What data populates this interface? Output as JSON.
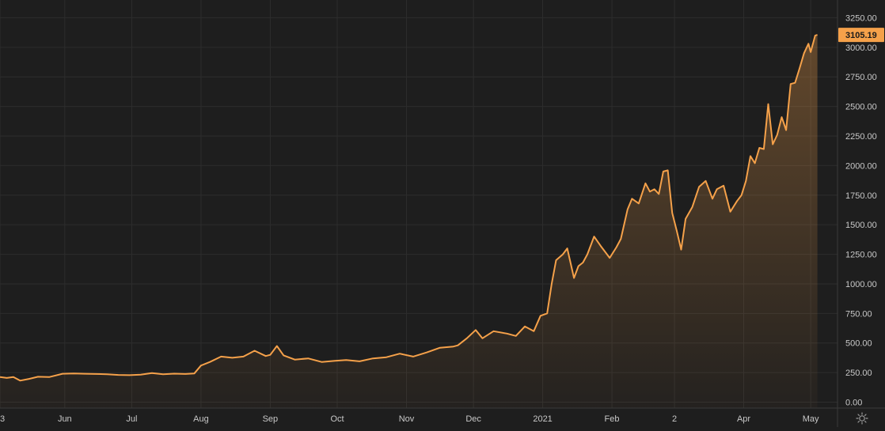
{
  "colors": {
    "background": "#1e1e1e",
    "grid": "#2d2d2d",
    "axis_text": "#c8c8c8",
    "line": "#f5a14a",
    "fill_top": "#f5a14a",
    "price_badge_bg": "#f5a14a",
    "price_badge_text": "#1a1a1a",
    "axis_border": "#3a3a3a"
  },
  "price_badge": {
    "label": "3105.19",
    "value": 3105.19
  },
  "icons": {
    "settings": "sun-gear-icon"
  },
  "chart_data": {
    "type": "area",
    "title": "",
    "xlabel": "",
    "ylabel": "",
    "ylim": [
      -50,
      3400
    ],
    "y_ticks": [
      0,
      250,
      500,
      750,
      1000,
      1250,
      1500,
      1750,
      2000,
      2250,
      2500,
      2750,
      3000,
      3250
    ],
    "y_tick_labels": [
      "0.00",
      "250.00",
      "500.00",
      "750.00",
      "1000.00",
      "1250.00",
      "1500.00",
      "1750.00",
      "2000.00",
      "2250.00",
      "2500.00",
      "2750.00",
      "3000.00",
      "3250.00"
    ],
    "x_range": [
      "2020-05-03",
      "2021-05-13"
    ],
    "x_ticks": [
      "2020-05-03",
      "2020-06-01",
      "2020-07-01",
      "2020-08-01",
      "2020-09-01",
      "2020-10-01",
      "2020-11-01",
      "2020-12-01",
      "2021-01-01",
      "2021-02-01",
      "2021-03-01",
      "2021-04-01",
      "2021-05-01"
    ],
    "x_tick_labels": [
      "3",
      "Jun",
      "Jul",
      "Aug",
      "Sep",
      "Oct",
      "Nov",
      "Dec",
      "2021",
      "Feb",
      "2",
      "Apr",
      "May"
    ],
    "grid": true,
    "series": [
      {
        "x": [
          "2020-05-01",
          "2020-05-06",
          "2020-05-09",
          "2020-05-12",
          "2020-05-16",
          "2020-05-20",
          "2020-05-25",
          "2020-05-31",
          "2020-06-05",
          "2020-06-10",
          "2020-06-15",
          "2020-06-20",
          "2020-06-25",
          "2020-06-30",
          "2020-07-05",
          "2020-07-10",
          "2020-07-15",
          "2020-07-20",
          "2020-07-25",
          "2020-07-29",
          "2020-08-01",
          "2020-08-05",
          "2020-08-10",
          "2020-08-15",
          "2020-08-20",
          "2020-08-25",
          "2020-08-30",
          "2020-09-01",
          "2020-09-04",
          "2020-09-07",
          "2020-09-12",
          "2020-09-18",
          "2020-09-24",
          "2020-09-30",
          "2020-10-05",
          "2020-10-11",
          "2020-10-17",
          "2020-10-23",
          "2020-10-29",
          "2020-11-04",
          "2020-11-10",
          "2020-11-16",
          "2020-11-22",
          "2020-11-24",
          "2020-11-28",
          "2020-12-02",
          "2020-12-05",
          "2020-12-10",
          "2020-12-16",
          "2020-12-20",
          "2020-12-24",
          "2020-12-28",
          "2020-12-31",
          "2021-01-03",
          "2021-01-05",
          "2021-01-07",
          "2021-01-10",
          "2021-01-12",
          "2021-01-15",
          "2021-01-17",
          "2021-01-19",
          "2021-01-21",
          "2021-01-24",
          "2021-01-27",
          "2021-01-31",
          "2021-02-03",
          "2021-02-05",
          "2021-02-08",
          "2021-02-10",
          "2021-02-13",
          "2021-02-16",
          "2021-02-18",
          "2021-02-20",
          "2021-02-22",
          "2021-02-24",
          "2021-02-26",
          "2021-02-28",
          "2021-03-02",
          "2021-03-04",
          "2021-03-06",
          "2021-03-09",
          "2021-03-12",
          "2021-03-15",
          "2021-03-18",
          "2021-03-20",
          "2021-03-23",
          "2021-03-26",
          "2021-03-29",
          "2021-03-31",
          "2021-04-02",
          "2021-04-04",
          "2021-04-06",
          "2021-04-08",
          "2021-04-10",
          "2021-04-12",
          "2021-04-14",
          "2021-04-16",
          "2021-04-18",
          "2021-04-20",
          "2021-04-22",
          "2021-04-24",
          "2021-04-26",
          "2021-04-28",
          "2021-04-30",
          "2021-05-01",
          "2021-05-03",
          "2021-05-04"
        ],
        "y": [
          213,
          205,
          213,
          182,
          197,
          215,
          212,
          240,
          242,
          240,
          238,
          236,
          230,
          228,
          232,
          246,
          236,
          241,
          238,
          243,
          310,
          340,
          385,
          375,
          385,
          435,
          390,
          400,
          475,
          395,
          360,
          370,
          340,
          350,
          356,
          345,
          370,
          380,
          410,
          385,
          420,
          460,
          470,
          480,
          540,
          610,
          540,
          600,
          580,
          560,
          640,
          600,
          730,
          750,
          1000,
          1200,
          1250,
          1300,
          1050,
          1150,
          1180,
          1250,
          1400,
          1320,
          1220,
          1310,
          1380,
          1630,
          1720,
          1680,
          1850,
          1780,
          1800,
          1760,
          1950,
          1960,
          1600,
          1450,
          1290,
          1550,
          1650,
          1820,
          1870,
          1720,
          1800,
          1830,
          1610,
          1700,
          1750,
          1870,
          2080,
          2020,
          2150,
          2140,
          2520,
          2180,
          2260,
          2410,
          2300,
          2690,
          2700,
          2820,
          2950,
          3030,
          2960,
          3100,
          3105.19
        ]
      }
    ]
  }
}
